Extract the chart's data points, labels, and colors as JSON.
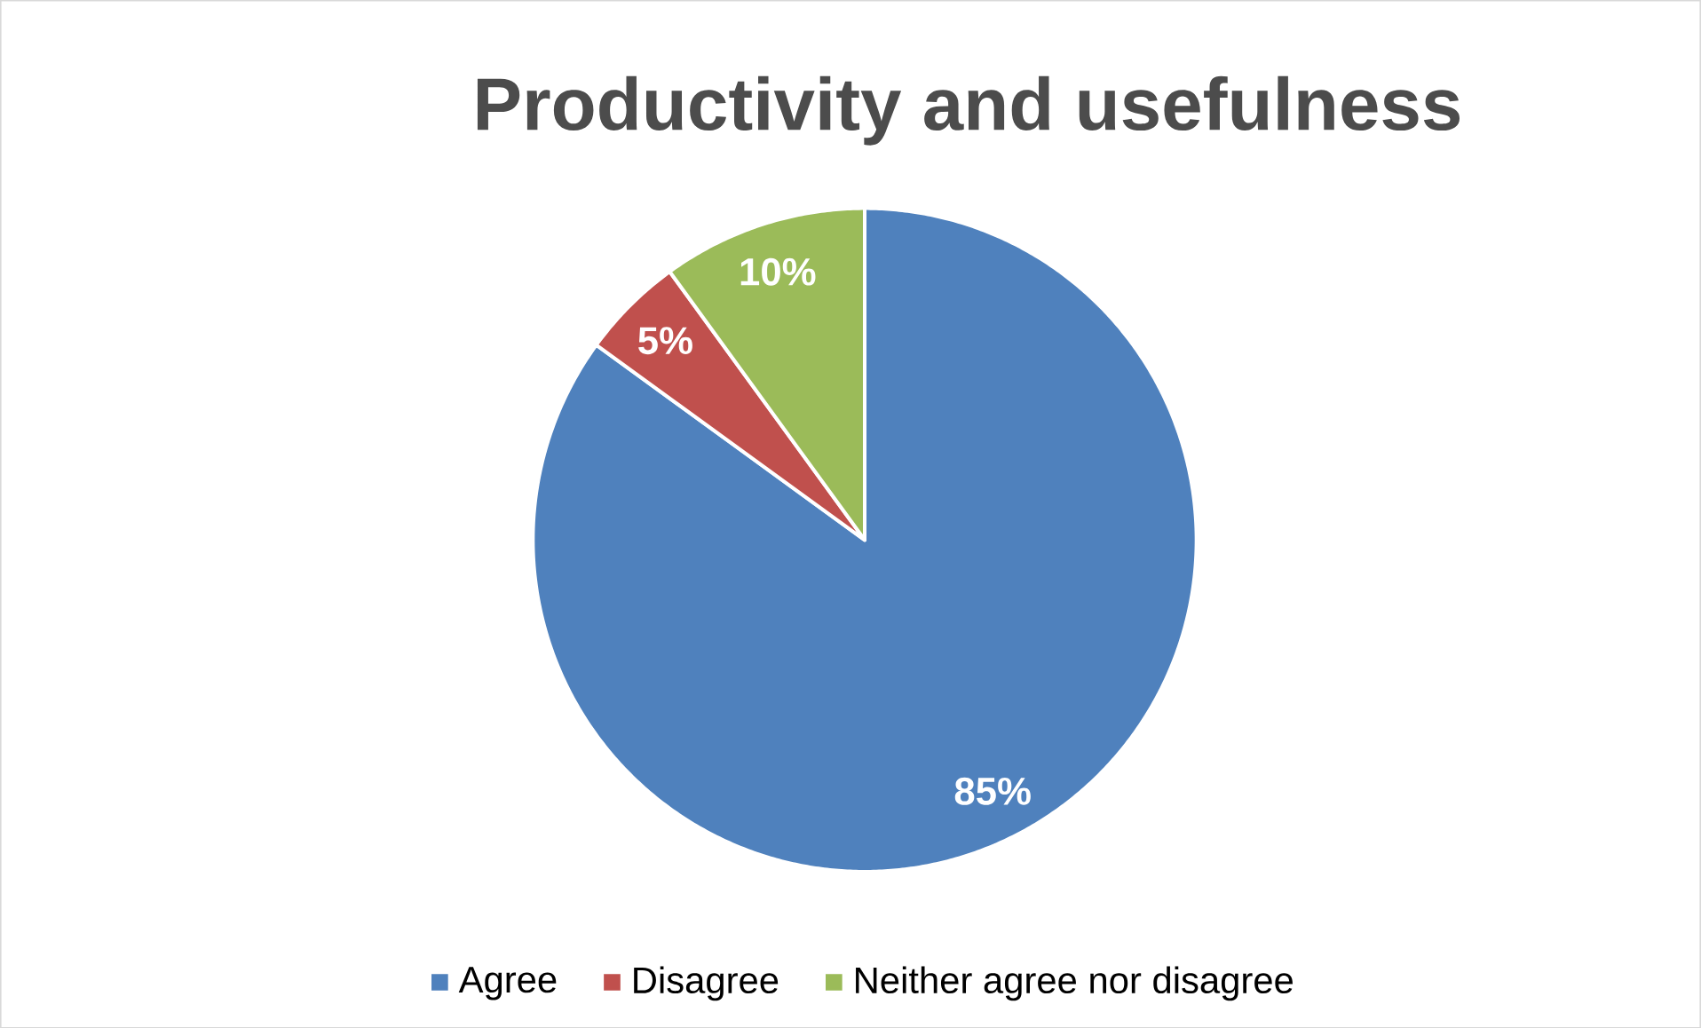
{
  "chart_data": {
    "type": "pie",
    "title": "Productivity and usefulness",
    "categories": [
      "Agree",
      "Disagree",
      "Neither agree nor disagree"
    ],
    "values": [
      85,
      5,
      10
    ],
    "colors": [
      "#4f81bd",
      "#c0504d",
      "#9bbb59"
    ],
    "value_labels": [
      "85%",
      "5%",
      "10%"
    ],
    "legend": "bottom"
  }
}
